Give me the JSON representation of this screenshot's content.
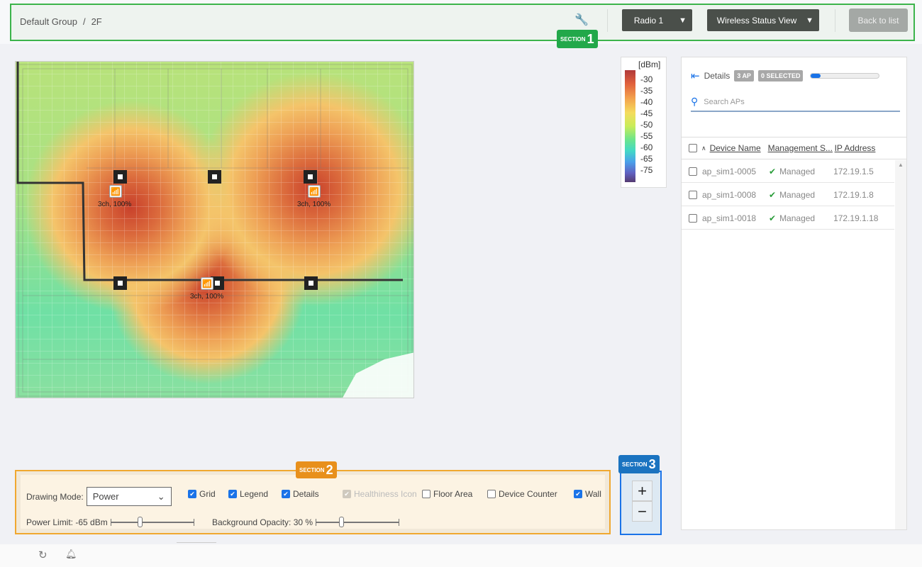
{
  "header": {
    "breadcrumb": [
      "Default Group",
      "/",
      "2F"
    ],
    "radio": "Radio 1",
    "view": "Wireless Status View",
    "back": "Back to list",
    "section_label": "SECTION",
    "section_num": "1"
  },
  "map": {
    "aps": [
      {
        "label": "3ch, 100%"
      },
      {
        "label": "3ch, 100%"
      },
      {
        "label": "3ch, 100%"
      }
    ]
  },
  "legend": {
    "unit": "[dBm]",
    "ticks": [
      "-30",
      "-35",
      "-40",
      "-45",
      "-50",
      "-55",
      "-60",
      "-65",
      "-75"
    ]
  },
  "panel": {
    "details": "Details",
    "ap_count": "3 AP",
    "selected": "0 SELECTED",
    "progress_pct": 14,
    "search_placeholder": "Search APs",
    "columns": [
      "Device Name",
      "Management S...",
      "IP Address"
    ],
    "rows": [
      {
        "name": "ap_sim1-0005",
        "status": "Managed",
        "ip": "172.19.1.5"
      },
      {
        "name": "ap_sim1-0008",
        "status": "Managed",
        "ip": "172.19.1.8"
      },
      {
        "name": "ap_sim1-0018",
        "status": "Managed",
        "ip": "172.19.1.18"
      }
    ]
  },
  "controls": {
    "section_label": "SECTION",
    "section_num": "2",
    "drawing_mode_label": "Drawing Mode:",
    "drawing_mode": "Power",
    "checks": [
      {
        "label": "Grid",
        "checked": true
      },
      {
        "label": "Legend",
        "checked": true
      },
      {
        "label": "Details",
        "checked": true
      },
      {
        "label": "Healthiness Icon",
        "checked": true,
        "disabled": true
      },
      {
        "label": "Floor Area",
        "checked": false
      },
      {
        "label": "Device Counter",
        "checked": false
      },
      {
        "label": "Wall",
        "checked": true
      }
    ],
    "power_limit": "Power Limit: -65 dBm",
    "bg_opacity": "Background Opacity: 30 %"
  },
  "zoom": {
    "section_label": "SECTION",
    "section_num": "3",
    "plus": "+",
    "minus": "−"
  },
  "colors": {
    "section1": "#3cb44b",
    "section2": "#f0a830",
    "section3": "#1a73e8",
    "accent": "#1a73e8"
  }
}
